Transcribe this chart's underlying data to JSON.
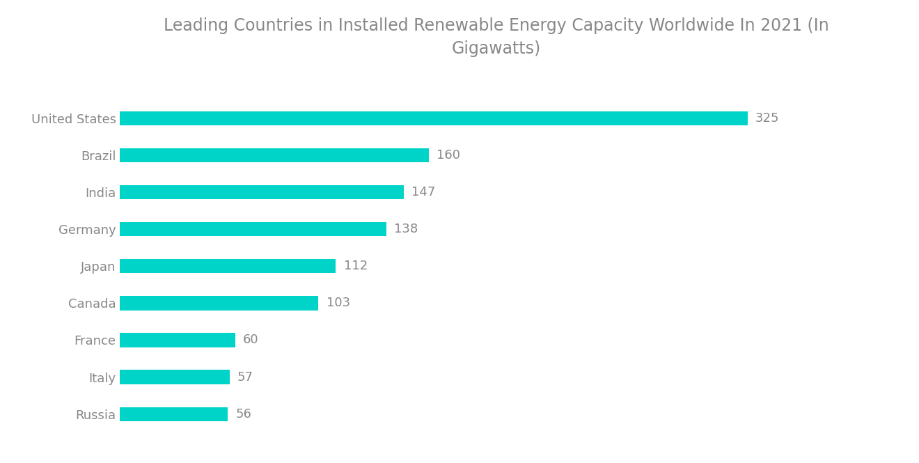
{
  "title": "Leading Countries in Installed Renewable Energy Capacity Worldwide In 2021 (In\nGigawatts)",
  "categories": [
    "United States",
    "Brazil",
    "India",
    "Germany",
    "Japan",
    "Canada",
    "France",
    "Italy",
    "Russia"
  ],
  "values": [
    325,
    160,
    147,
    138,
    112,
    103,
    60,
    57,
    56
  ],
  "bar_color": "#00D4C8",
  "label_color": "#888888",
  "title_color": "#888888",
  "value_color": "#888888",
  "background_color": "#ffffff",
  "title_fontsize": 17,
  "label_fontsize": 13,
  "value_fontsize": 13,
  "bar_height": 0.38,
  "xlim": [
    0,
    390
  ]
}
